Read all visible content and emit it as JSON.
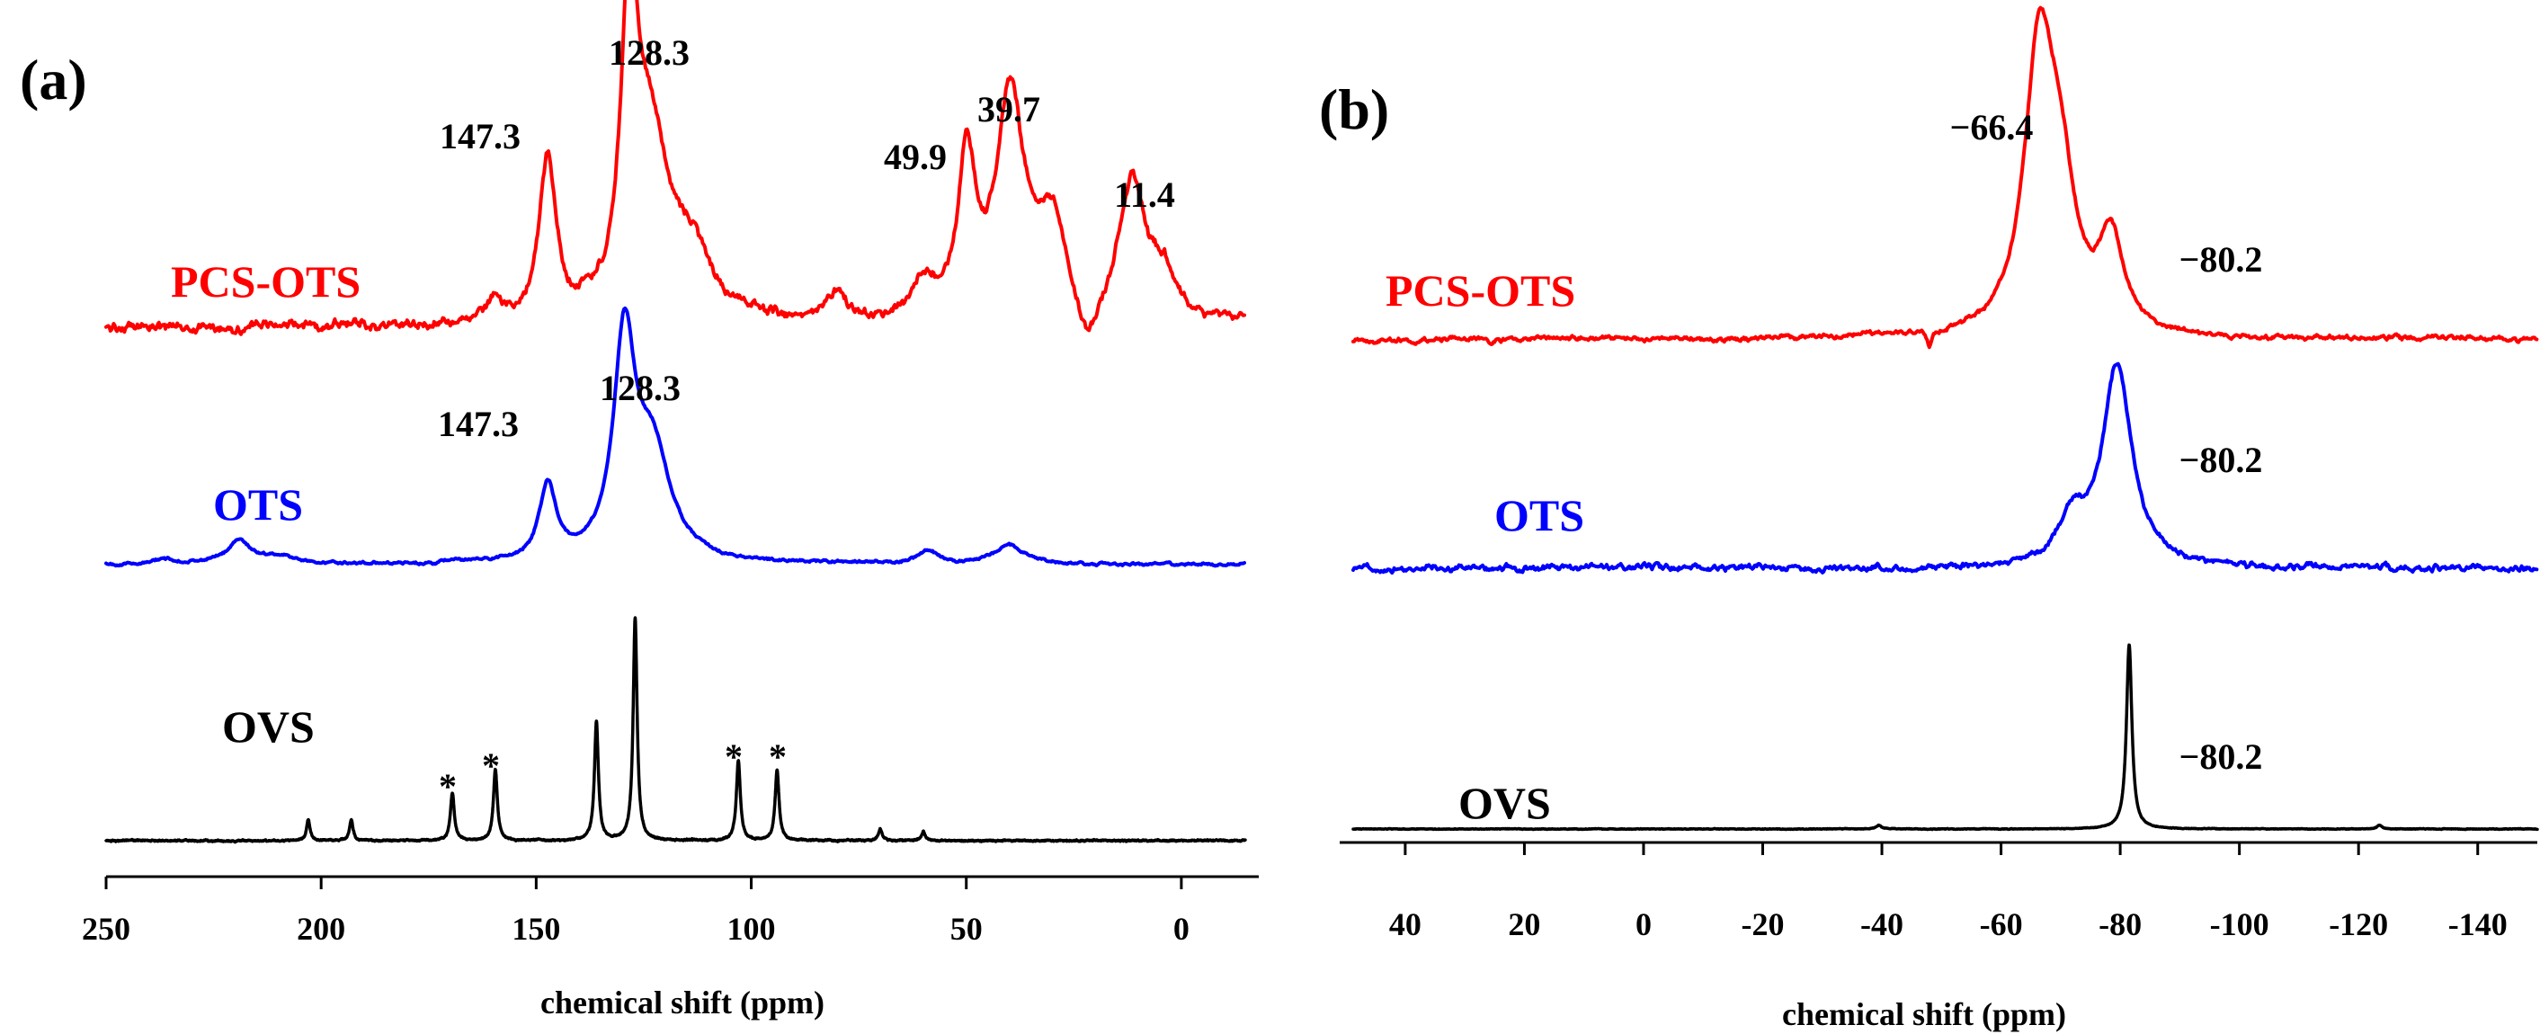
{
  "figure": {
    "panels": [
      "(a)",
      "(b)"
    ]
  },
  "chart_data": [
    {
      "type": "line",
      "panel": "(a)",
      "xlabel": "chemical shift (ppm)",
      "ylabel": "",
      "xlim": [
        250,
        -18
      ],
      "xticks": [
        250,
        200,
        150,
        100,
        50,
        0
      ],
      "x_reversed": true,
      "colors": {
        "PCS-OTS": "#ff0000",
        "OTS": "#0000ff",
        "OVS": "#000000"
      },
      "series": [
        {
          "name": "PCS-OTS",
          "baseline": 0,
          "noise_amp": 0.022,
          "peaks": [
            {
              "pos": 128.3,
              "height": 1.0,
              "width": 2.2
            },
            {
              "pos": 123.5,
              "height": 0.55,
              "width": 5
            },
            {
              "pos": 114,
              "height": 0.2,
              "width": 6
            },
            {
              "pos": 147.3,
              "height": 0.52,
              "width": 2.4
            },
            {
              "pos": 160,
              "height": 0.06,
              "width": 3
            },
            {
              "pos": 80,
              "height": 0.1,
              "width": 3
            },
            {
              "pos": 60,
              "height": 0.12,
              "width": 3
            },
            {
              "pos": 49.9,
              "height": 0.52,
              "width": 2.5
            },
            {
              "pos": 39.7,
              "height": 0.72,
              "width": 4
            },
            {
              "pos": 30,
              "height": 0.32,
              "width": 4
            },
            {
              "pos": 22,
              "height": -0.17,
              "width": 3
            },
            {
              "pos": 11.4,
              "height": 0.45,
              "width": 4
            },
            {
              "pos": 4,
              "height": 0.14,
              "width": 3
            }
          ],
          "labels": [
            {
              "text": "147.3",
              "x": 147.3
            },
            {
              "text": "128.3",
              "x": 128.3
            },
            {
              "text": "49.9",
              "x": 49.9
            },
            {
              "text": "39.7",
              "x": 39.7
            },
            {
              "text": "11.4",
              "x": 11.4
            }
          ]
        },
        {
          "name": "OTS",
          "baseline": 0,
          "noise_amp": 0.008,
          "peaks": [
            {
              "pos": 236,
              "height": 0.02,
              "width": 3
            },
            {
              "pos": 219,
              "height": 0.1,
              "width": 3
            },
            {
              "pos": 210,
              "height": 0.03,
              "width": 5
            },
            {
              "pos": 147.3,
              "height": 0.32,
              "width": 2.4
            },
            {
              "pos": 129.5,
              "height": 0.9,
              "width": 3
            },
            {
              "pos": 123,
              "height": 0.45,
              "width": 5
            },
            {
              "pos": 59,
              "height": 0.05,
              "width": 3
            },
            {
              "pos": 40,
              "height": 0.08,
              "width": 4
            }
          ],
          "labels": [
            {
              "text": "147.3",
              "x": 147.3
            },
            {
              "text": "128.3",
              "x": 128.3
            }
          ]
        },
        {
          "name": "OVS",
          "baseline": 0,
          "noise_amp": 0.003,
          "peaks": [
            {
              "pos": 203,
              "height": 0.07,
              "width": 0.5
            },
            {
              "pos": 193,
              "height": 0.07,
              "width": 0.5
            },
            {
              "pos": 169.5,
              "height": 0.16,
              "width": 0.55
            },
            {
              "pos": 159.5,
              "height": 0.24,
              "width": 0.55
            },
            {
              "pos": 136,
              "height": 0.4,
              "width": 0.55
            },
            {
              "pos": 127,
              "height": 0.75,
              "width": 0.55
            },
            {
              "pos": 103,
              "height": 0.27,
              "width": 0.55
            },
            {
              "pos": 94,
              "height": 0.24,
              "width": 0.55
            },
            {
              "pos": 70,
              "height": 0.04,
              "width": 0.5
            },
            {
              "pos": 60,
              "height": 0.03,
              "width": 0.5
            }
          ],
          "labels": [
            {
              "text": "*",
              "x": 169.5
            },
            {
              "text": "*",
              "x": 159.5
            },
            {
              "text": "*",
              "x": 103
            },
            {
              "text": "*",
              "x": 94
            }
          ]
        }
      ]
    },
    {
      "type": "line",
      "panel": "(b)",
      "xlabel": "chemical shift (ppm)",
      "ylabel": "",
      "xlim": [
        51,
        -150
      ],
      "xticks": [
        40,
        20,
        0,
        -20,
        -40,
        -60,
        -80,
        -100,
        -120,
        -140
      ],
      "x_reversed": true,
      "colors": {
        "PCS-OTS": "#ff0000",
        "OTS": "#0000ff",
        "OVS": "#000000"
      },
      "series": [
        {
          "name": "PCS-OTS",
          "baseline": 0,
          "noise_amp": 0.012,
          "peaks": [
            {
              "pos": -66.4,
              "height": 1.0,
              "width": 3
            },
            {
              "pos": -70,
              "height": 0.45,
              "width": 3
            },
            {
              "pos": -78.5,
              "height": 0.33,
              "width": 2.5
            },
            {
              "pos": -48,
              "height": -0.06,
              "width": 0.5
            }
          ],
          "labels": [
            {
              "text": "−66.4",
              "x": -66.4
            },
            {
              "text": "−80.2",
              "x": -80.2
            }
          ]
        },
        {
          "name": "OTS",
          "baseline": 0,
          "noise_amp": 0.02,
          "peaks": [
            {
              "pos": -79.5,
              "height": 0.95,
              "width": 3
            },
            {
              "pos": -72,
              "height": 0.22,
              "width": 2.5
            }
          ],
          "labels": [
            {
              "text": "−80.2",
              "x": -80.2
            }
          ]
        },
        {
          "name": "OVS",
          "baseline": 0,
          "noise_amp": 0.002,
          "peaks": [
            {
              "pos": -81.5,
              "height": 1.0,
              "width": 0.55
            },
            {
              "pos": -39.5,
              "height": 0.02,
              "width": 0.5
            },
            {
              "pos": -123.5,
              "height": 0.02,
              "width": 0.5
            }
          ],
          "labels": [
            {
              "text": "−80.2",
              "x": -80.2
            }
          ]
        }
      ]
    }
  ]
}
